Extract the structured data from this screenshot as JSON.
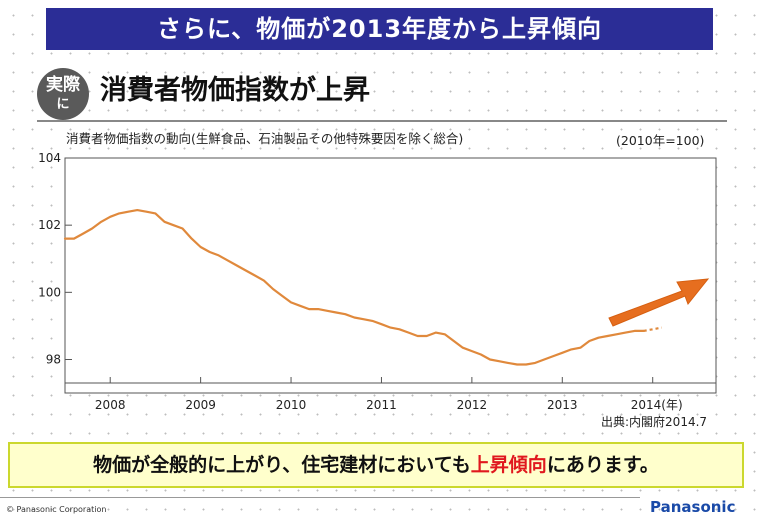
{
  "slide": {
    "banner_title": "さらに、物価が2013年度から上昇傾向",
    "badge_line1": "実際",
    "badge_line2": "に",
    "subtitle": "消費者物価指数が上昇",
    "source": "出典:内閣府2014.7",
    "callout_pre": "物価が全般的に上がり、住宅建材においても",
    "callout_highlight": "上昇傾向",
    "callout_post": "にあります。",
    "copyright": "© Panasonic Corporation",
    "logo": "Panasonic",
    "colors": {
      "banner_bg": "#2b2d96",
      "line": "#e0893c",
      "arrow": "#e66e1f",
      "highlight_text": "#e0181e",
      "callout_bg": "#ffffcc",
      "logo": "#1a4aa8"
    }
  },
  "chart_data": {
    "type": "line",
    "title": "消費者物価指数の動向(生鮮食品、石油製品その他特殊要因を除く総合)",
    "base_note": "(2010年=100)",
    "xlabel": "",
    "ylabel": "",
    "x_tick_labels": [
      "2008",
      "2009",
      "2010",
      "2011",
      "2012",
      "2013",
      "2014(年)"
    ],
    "y_ticks": [
      98,
      100,
      102,
      104
    ],
    "ylim": [
      97.3,
      104
    ],
    "xlim": [
      2007.5,
      2014.7
    ],
    "grid": false,
    "series": [
      {
        "name": "",
        "x": [
          2007.5,
          2007.6,
          2007.7,
          2007.8,
          2007.9,
          2008.0,
          2008.1,
          2008.2,
          2008.3,
          2008.4,
          2008.5,
          2008.6,
          2008.7,
          2008.8,
          2008.9,
          2009.0,
          2009.1,
          2009.2,
          2009.3,
          2009.4,
          2009.5,
          2009.6,
          2009.7,
          2009.8,
          2009.9,
          2010.0,
          2010.1,
          2010.2,
          2010.3,
          2010.4,
          2010.5,
          2010.6,
          2010.7,
          2010.8,
          2010.9,
          2011.0,
          2011.1,
          2011.2,
          2011.3,
          2011.4,
          2011.5,
          2011.6,
          2011.7,
          2011.8,
          2011.9,
          2012.0,
          2012.1,
          2012.2,
          2012.3,
          2012.4,
          2012.5,
          2012.6,
          2012.7,
          2012.8,
          2012.9,
          2013.0,
          2013.1,
          2013.2,
          2013.3,
          2013.4,
          2013.5,
          2013.6,
          2013.7,
          2013.8,
          2013.9,
          2014.0,
          2014.1
        ],
        "values": [
          101.6,
          101.6,
          101.75,
          101.9,
          102.1,
          102.25,
          102.35,
          102.4,
          102.45,
          102.4,
          102.35,
          102.1,
          102.0,
          101.9,
          101.6,
          101.35,
          101.2,
          101.1,
          100.95,
          100.8,
          100.65,
          100.5,
          100.35,
          100.1,
          99.9,
          99.7,
          99.6,
          99.5,
          99.5,
          99.45,
          99.4,
          99.35,
          99.25,
          99.2,
          99.15,
          99.05,
          98.95,
          98.9,
          98.8,
          98.7,
          98.7,
          98.8,
          98.75,
          98.55,
          98.35,
          98.25,
          98.15,
          98.0,
          97.95,
          97.9,
          97.85,
          97.85,
          97.9,
          98.0,
          98.1,
          98.2,
          98.3,
          98.35,
          98.55,
          98.65,
          98.7,
          98.75,
          98.8,
          98.85,
          98.85,
          98.9,
          98.95
        ]
      }
    ],
    "dashed_from_index": 64
  }
}
